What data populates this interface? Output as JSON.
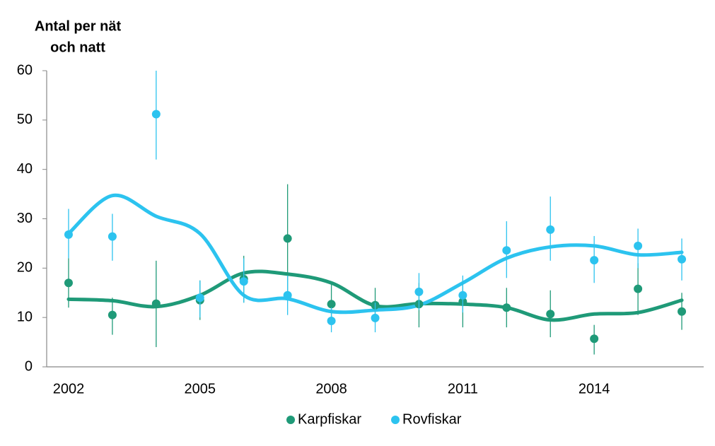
{
  "chart_data": {
    "type": "scatter",
    "ylabel_lines": [
      "Antal per nät",
      "och natt"
    ],
    "x": [
      2002,
      2003,
      2004,
      2005,
      2006,
      2007,
      2008,
      2009,
      2010,
      2011,
      2012,
      2013,
      2014,
      2015,
      2016
    ],
    "xlim": [
      2001.5,
      2016.5
    ],
    "xticks": [
      2002,
      2005,
      2008,
      2011,
      2014
    ],
    "ylim": [
      0,
      60
    ],
    "yticks": [
      0,
      10,
      20,
      30,
      40,
      50,
      60
    ],
    "legend": "bottom",
    "series": [
      {
        "name": "Karpfiskar",
        "color": "#1f9a78",
        "values": [
          17,
          10.5,
          12.8,
          13.5,
          17.8,
          26,
          12.7,
          12.5,
          12.7,
          13.2,
          12,
          10.7,
          5.7,
          15.8,
          11.2
        ],
        "lower": [
          12,
          6.5,
          4,
          9.5,
          13,
          15,
          8.5,
          9,
          8,
          8,
          8,
          6,
          2.5,
          10.5,
          7.5
        ],
        "upper": [
          22,
          14,
          21.5,
          17.5,
          22.5,
          37,
          17,
          16,
          17,
          17.5,
          16,
          15.5,
          8.5,
          21,
          15
        ],
        "trend": [
          13.7,
          13.4,
          12.2,
          14.5,
          19,
          18.8,
          17,
          12.4,
          12.8,
          12.7,
          12,
          9.5,
          10.7,
          11,
          13.5
        ]
      },
      {
        "name": "Rovfiskar",
        "color": "#2cc3ef",
        "values": [
          26.8,
          26.4,
          51.2,
          14,
          17.3,
          14.5,
          9.3,
          9.9,
          15.2,
          14.5,
          23.6,
          27.8,
          21.6,
          24.5,
          21.8
        ],
        "lower": [
          22,
          21.5,
          42,
          10,
          13,
          10.5,
          7,
          7,
          11.5,
          11,
          18,
          21.5,
          17,
          20,
          17.5
        ],
        "upper": [
          32,
          31,
          60,
          17.5,
          22,
          18.5,
          12,
          13,
          19,
          18.5,
          29.5,
          34.5,
          26.5,
          28,
          26
        ],
        "trend": [
          27,
          34.7,
          30.5,
          27,
          14.5,
          13.8,
          11.2,
          11.5,
          12.5,
          17,
          22,
          24.3,
          24.5,
          22.7,
          23.2
        ]
      }
    ]
  }
}
